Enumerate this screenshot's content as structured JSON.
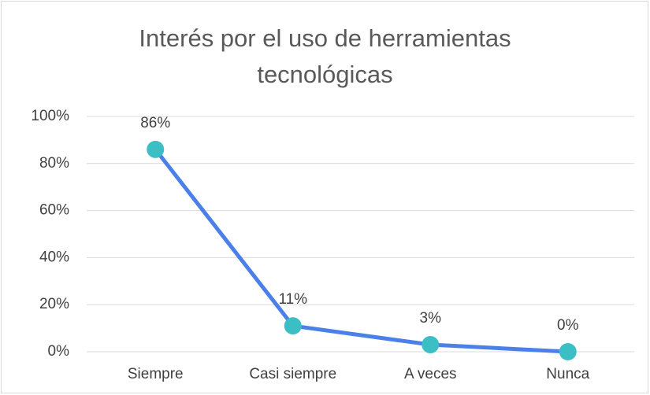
{
  "chart_data": {
    "type": "line",
    "title": "Interés por el uso de herramientas tecnológicas",
    "categories": [
      "Siempre",
      "Casi siempre",
      "A veces",
      "Nunca"
    ],
    "series": [
      {
        "values": [
          86,
          11,
          3,
          0
        ],
        "value_labels": [
          "86%",
          "11%",
          "3%",
          "0%"
        ],
        "color": "#4a80e8",
        "marker_color": "#3cbfc4"
      }
    ],
    "ylim": [
      0,
      100
    ],
    "yticks": [
      {
        "value": 0,
        "label": "0%"
      },
      {
        "value": 20,
        "label": "20%"
      },
      {
        "value": 40,
        "label": "40%"
      },
      {
        "value": 60,
        "label": "60%"
      },
      {
        "value": 80,
        "label": "80%"
      },
      {
        "value": 100,
        "label": "100%"
      }
    ],
    "grid": true
  }
}
